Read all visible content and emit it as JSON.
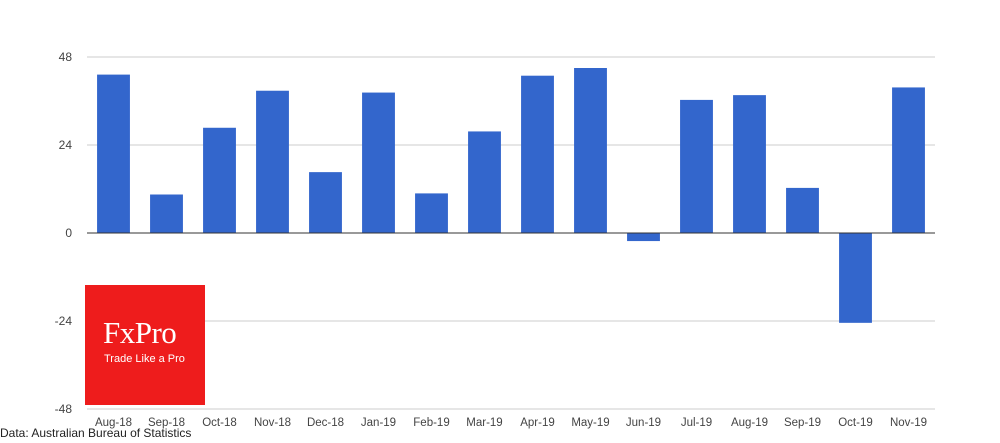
{
  "chart_data": {
    "type": "bar",
    "categories": [
      "Aug-18",
      "Sep-18",
      "Oct-18",
      "Nov-18",
      "Dec-18",
      "Jan-19",
      "Feb-19",
      "Mar-19",
      "Apr-19",
      "May-19",
      "Jun-19",
      "Jul-19",
      "Aug-19",
      "Sep-19",
      "Oct-19",
      "Nov-19"
    ],
    "values": [
      43.2,
      10.5,
      28.7,
      38.8,
      16.6,
      38.3,
      10.8,
      27.7,
      42.9,
      45.0,
      -2.2,
      36.3,
      37.6,
      12.3,
      -24.5,
      39.7
    ],
    "ylim": [
      -48,
      48
    ],
    "yticks": [
      48,
      24,
      0,
      -24,
      -48
    ],
    "bar_color": "#3366cc",
    "grid": true,
    "title": "",
    "xlabel": "",
    "ylabel": ""
  },
  "logo": {
    "name": "FxPro",
    "tagline": "Trade Like a Pro",
    "color": "#ee1c1c"
  },
  "source_note": "Data: Australian Bureau of Statistics"
}
